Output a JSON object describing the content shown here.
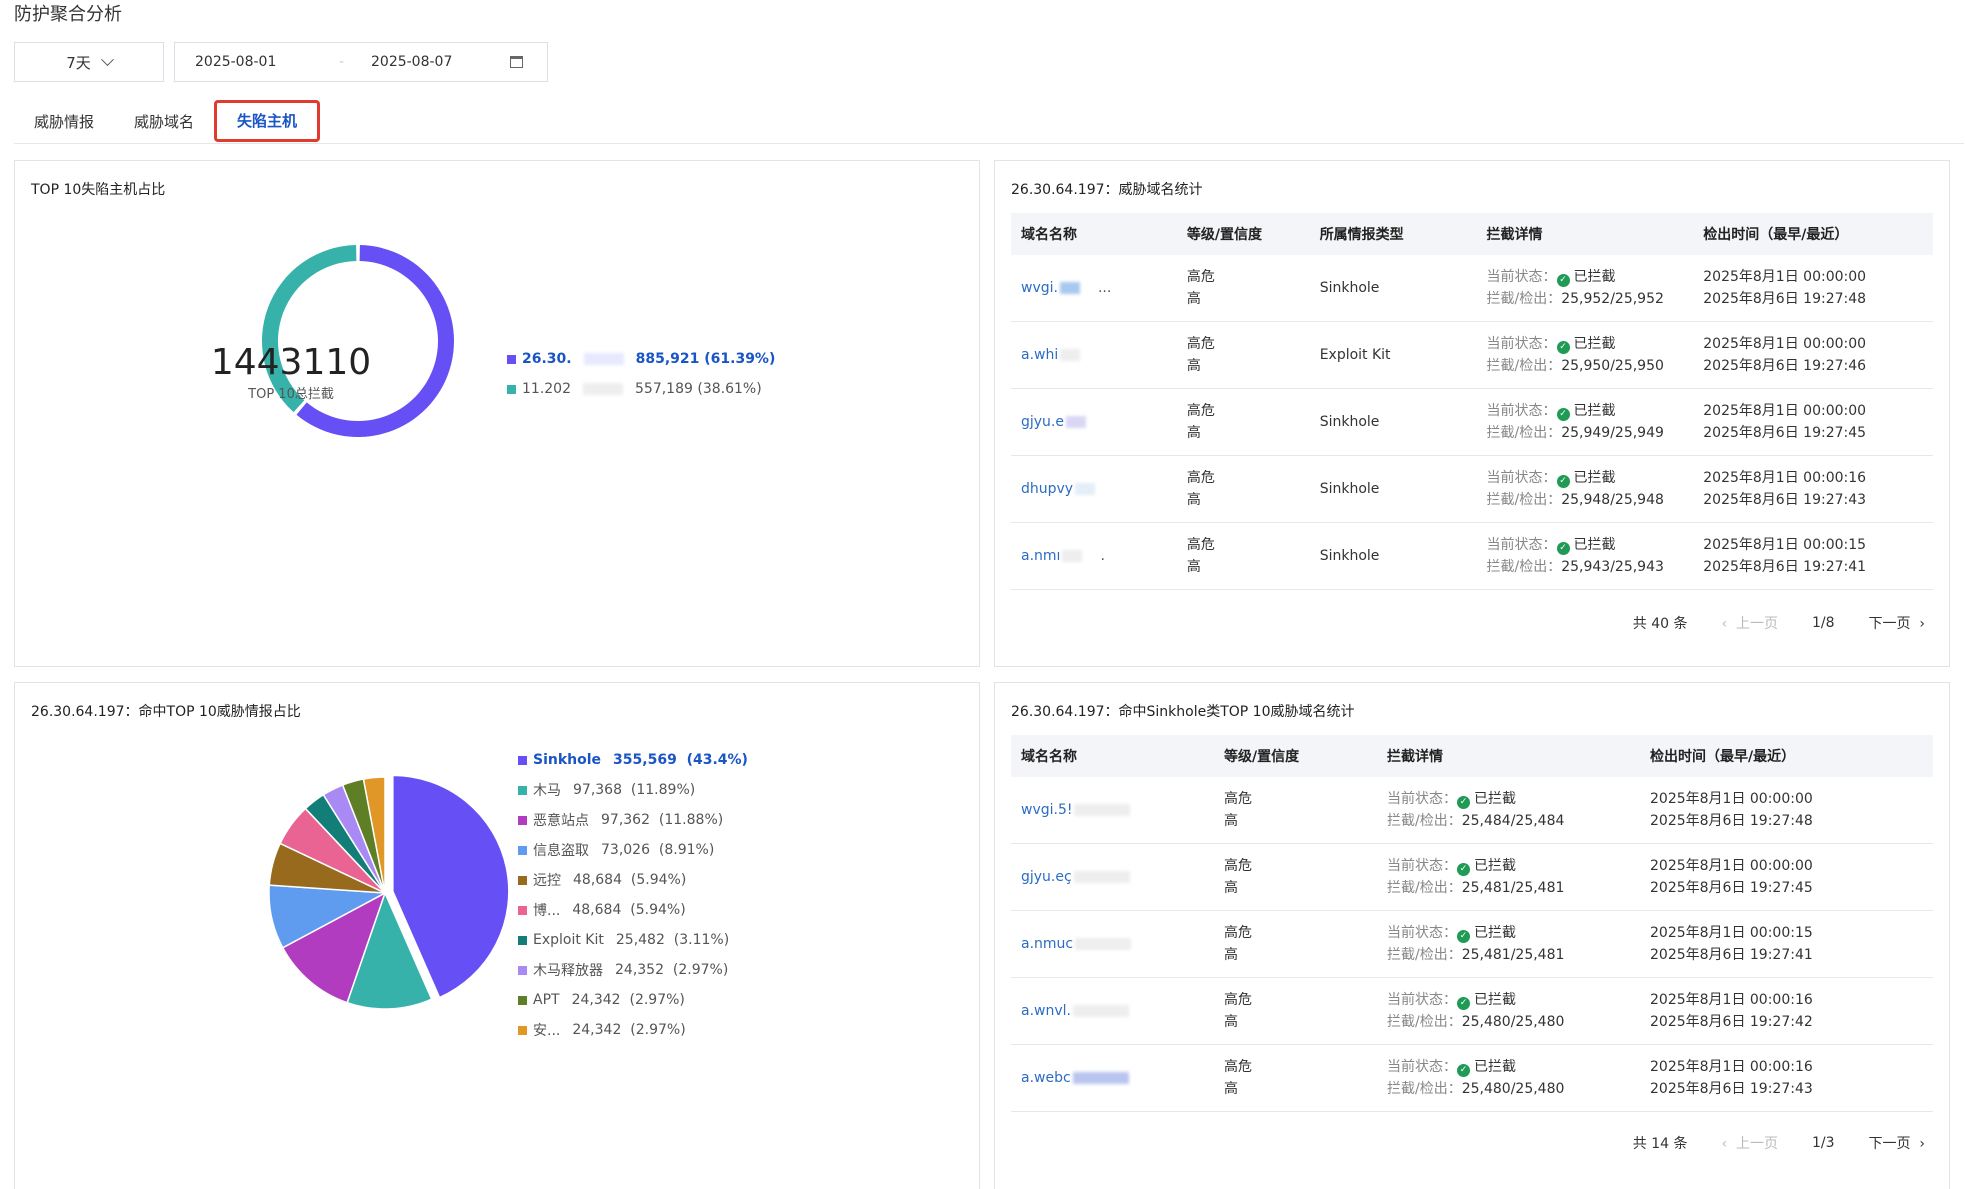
{
  "page_title": "防护聚合分析",
  "filter": {
    "range": "7天",
    "start_date": "2025-08-01",
    "end_date": "2025-08-07",
    "separator": "-"
  },
  "tabs": [
    {
      "label": "威胁情报",
      "active": false
    },
    {
      "label": "威胁域名",
      "active": false
    },
    {
      "label": "失陷主机",
      "active": true
    }
  ],
  "donut_card": {
    "title": "TOP 10失陷主机占比",
    "center_value": "1443110",
    "center_label": "TOP 10总拦截",
    "legend": [
      {
        "name": "26.30.",
        "value": "885,921",
        "pct": "(61.39%)",
        "color": "#6650f5"
      },
      {
        "name": "11.202",
        "value": "557,189",
        "pct": "(38.61%)",
        "color": "#36b2aa"
      }
    ]
  },
  "domain_card": {
    "title": "26.30.64.197：威胁域名统计",
    "headers": [
      "域名名称",
      "等级/置信度",
      "所属情报类型",
      "拦截详情",
      "检出时间（最早/最近）"
    ],
    "rows": [
      {
        "domain": "wvgi.",
        "suffix": "...",
        "level": "高危",
        "confidence": "高",
        "type": "Sinkhole",
        "status_label": "当前状态：",
        "status": "已拦截",
        "count_label": "拦截/检出：",
        "counts": "25,952/25,952",
        "first": "2025年8月1日 00:00:00",
        "last": "2025年8月6日 19:27:48"
      },
      {
        "domain": "a.whi",
        "suffix": "",
        "level": "高危",
        "confidence": "高",
        "type": "Exploit Kit",
        "status_label": "当前状态：",
        "status": "已拦截",
        "count_label": "拦截/检出：",
        "counts": "25,950/25,950",
        "first": "2025年8月1日 00:00:00",
        "last": "2025年8月6日 19:27:46"
      },
      {
        "domain": "gjyu.e",
        "suffix": "",
        "level": "高危",
        "confidence": "高",
        "type": "Sinkhole",
        "status_label": "当前状态：",
        "status": "已拦截",
        "count_label": "拦截/检出：",
        "counts": "25,949/25,949",
        "first": "2025年8月1日 00:00:00",
        "last": "2025年8月6日 19:27:45"
      },
      {
        "domain": "dhupvy",
        "suffix": "",
        "level": "高危",
        "confidence": "高",
        "type": "Sinkhole",
        "status_label": "当前状态：",
        "status": "已拦截",
        "count_label": "拦截/检出：",
        "counts": "25,948/25,948",
        "first": "2025年8月1日 00:00:16",
        "last": "2025年8月6日 19:27:43"
      },
      {
        "domain": "a.nmı",
        "suffix": ".",
        "level": "高危",
        "confidence": "高",
        "type": "Sinkhole",
        "status_label": "当前状态：",
        "status": "已拦截",
        "count_label": "拦截/检出：",
        "counts": "25,943/25,943",
        "first": "2025年8月1日 00:00:15",
        "last": "2025年8月6日 19:27:41"
      }
    ],
    "pager": {
      "total": "共 40 条",
      "prev": "上一页",
      "page": "1/8",
      "next": "下一页"
    }
  },
  "pie_card": {
    "title": "26.30.64.197：命中TOP 10威胁情报占比",
    "legend": [
      {
        "name": "Sinkhole",
        "value": "355,569",
        "pct": "(43.4%)",
        "color": "#6650f5"
      },
      {
        "name": "木马",
        "value": "97,368",
        "pct": "(11.89%)",
        "color": "#36b2aa"
      },
      {
        "name": "恶意站点",
        "value": "97,362",
        "pct": "(11.88%)",
        "color": "#b13cbf"
      },
      {
        "name": "信息盗取",
        "value": "73,026",
        "pct": "(8.91%)",
        "color": "#5f9cf0"
      },
      {
        "name": "远控",
        "value": "48,684",
        "pct": "(5.94%)",
        "color": "#986a1e"
      },
      {
        "name": "博...",
        "value": "48,684",
        "pct": "(5.94%)",
        "color": "#ea6493"
      },
      {
        "name": "Exploit Kit",
        "value": "25,482",
        "pct": "(3.11%)",
        "color": "#137d77"
      },
      {
        "name": "木马释放器",
        "value": "24,352",
        "pct": "(2.97%)",
        "color": "#a98af5"
      },
      {
        "name": "APT",
        "value": "24,342",
        "pct": "(2.97%)",
        "color": "#5e7f25"
      },
      {
        "name": "安...",
        "value": "24,342",
        "pct": "(2.97%)",
        "color": "#e09727"
      }
    ]
  },
  "sinkhole_card": {
    "title": "26.30.64.197：命中Sinkhole类TOP 10威胁域名统计",
    "headers": [
      "域名名称",
      "等级/置信度",
      "拦截详情",
      "检出时间（最早/最近）"
    ],
    "rows": [
      {
        "domain": "wvgi.5!",
        "level": "高危",
        "confidence": "高",
        "status_label": "当前状态：",
        "status": "已拦截",
        "count_label": "拦截/检出：",
        "counts": "25,484/25,484",
        "first": "2025年8月1日 00:00:00",
        "last": "2025年8月6日 19:27:48"
      },
      {
        "domain": "gjyu.eç",
        "level": "高危",
        "confidence": "高",
        "status_label": "当前状态：",
        "status": "已拦截",
        "count_label": "拦截/检出：",
        "counts": "25,481/25,481",
        "first": "2025年8月1日 00:00:00",
        "last": "2025年8月6日 19:27:45"
      },
      {
        "domain": "a.nmuc",
        "level": "高危",
        "confidence": "高",
        "status_label": "当前状态：",
        "status": "已拦截",
        "count_label": "拦截/检出：",
        "counts": "25,481/25,481",
        "first": "2025年8月1日 00:00:15",
        "last": "2025年8月6日 19:27:41"
      },
      {
        "domain": "a.wnvl.",
        "level": "高危",
        "confidence": "高",
        "status_label": "当前状态：",
        "status": "已拦截",
        "count_label": "拦截/检出：",
        "counts": "25,480/25,480",
        "first": "2025年8月1日 00:00:16",
        "last": "2025年8月6日 19:27:42"
      },
      {
        "domain": "a.webc",
        "level": "高危",
        "confidence": "高",
        "status_label": "当前状态：",
        "status": "已拦截",
        "count_label": "拦截/检出：",
        "counts": "25,480/25,480",
        "first": "2025年8月1日 00:00:16",
        "last": "2025年8月6日 19:27:43"
      }
    ],
    "pager": {
      "total": "共 14 条",
      "prev": "上一页",
      "page": "1/3",
      "next": "下一页"
    }
  },
  "chart_data": [
    {
      "type": "pie",
      "categories": [
        "26.30.",
        "11.202"
      ],
      "values": [
        885921,
        557189
      ],
      "donut": true
    },
    {
      "type": "pie",
      "categories": [
        "Sinkhole",
        "木马",
        "恶意站点",
        "信息盗取",
        "远控",
        "博...",
        "Exploit Kit",
        "木马释放器",
        "APT",
        "安..."
      ],
      "values": [
        355569,
        97368,
        97362,
        73026,
        48684,
        48684,
        25482,
        24352,
        24342,
        24342
      ]
    }
  ]
}
